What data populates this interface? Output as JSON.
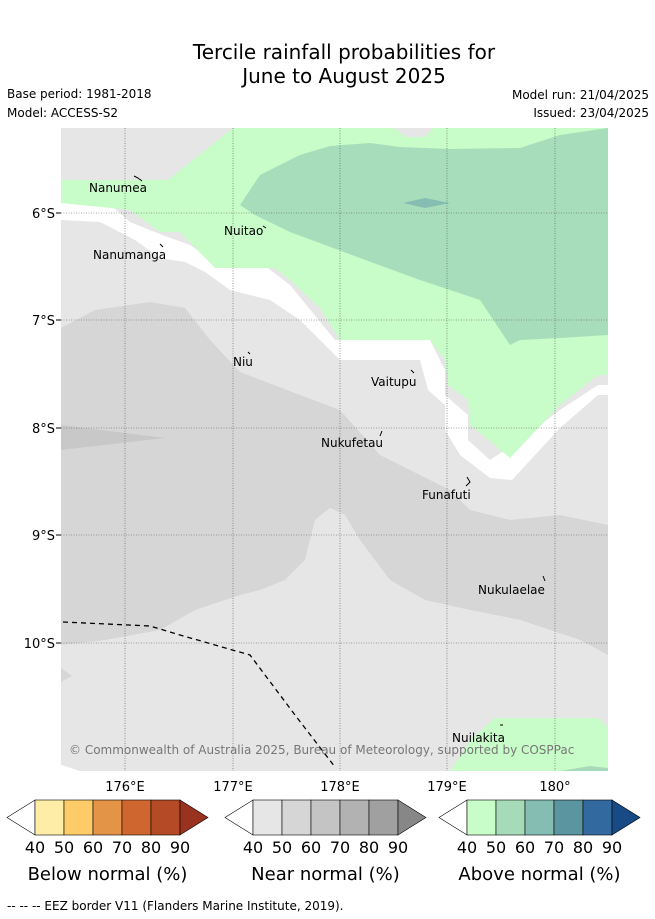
{
  "title": {
    "line1": "Tercile rainfall probabilities for",
    "line2": "June to August 2025"
  },
  "info": {
    "base_period": "Base period: 1981-2018",
    "model": "Model: ACCESS-S2",
    "model_run": "Model run: 21/04/2025",
    "issued": "Issued: 23/04/2025"
  },
  "map": {
    "lat_labels": [
      "6°S",
      "7°S",
      "8°S",
      "9°S",
      "10°S"
    ],
    "lon_labels": [
      "176°E",
      "177°E",
      "178°E",
      "179°E",
      "180°"
    ],
    "islands": [
      "Nanumea",
      "Nuitao",
      "Nanumanga",
      "Niu",
      "Vaitupu",
      "Nukufetau",
      "Funafuti",
      "Nukulaelae",
      "Nuilakita"
    ],
    "copyright": "© Commonwealth of Australia 2025, Bureau of Meteorology, supported by COSPPac"
  },
  "colorbars": [
    {
      "title": "Below normal (%)",
      "ticks": [
        "40",
        "50",
        "60",
        "70",
        "80",
        "90"
      ],
      "colors": [
        "#ffffff",
        "#fdeda6",
        "#fdcb67",
        "#e39447",
        "#d0662f",
        "#b44a26",
        "#9a3220"
      ]
    },
    {
      "title": "Near normal (%)",
      "ticks": [
        "40",
        "50",
        "60",
        "70",
        "80",
        "90"
      ],
      "colors": [
        "#ffffff",
        "#e6e6e6",
        "#d6d6d6",
        "#c4c4c4",
        "#b2b2b2",
        "#a0a0a0",
        "#878787"
      ]
    },
    {
      "title": "Above normal (%)",
      "ticks": [
        "40",
        "50",
        "60",
        "70",
        "80",
        "90"
      ],
      "colors": [
        "#ffffff",
        "#c8fcc8",
        "#a6dbba",
        "#86bdb3",
        "#5b95a0",
        "#326aa0",
        "#184b86"
      ]
    }
  ],
  "footnote": "--  --  -- EEZ border V11 (Flanders Marine Institute, 2019)."
}
